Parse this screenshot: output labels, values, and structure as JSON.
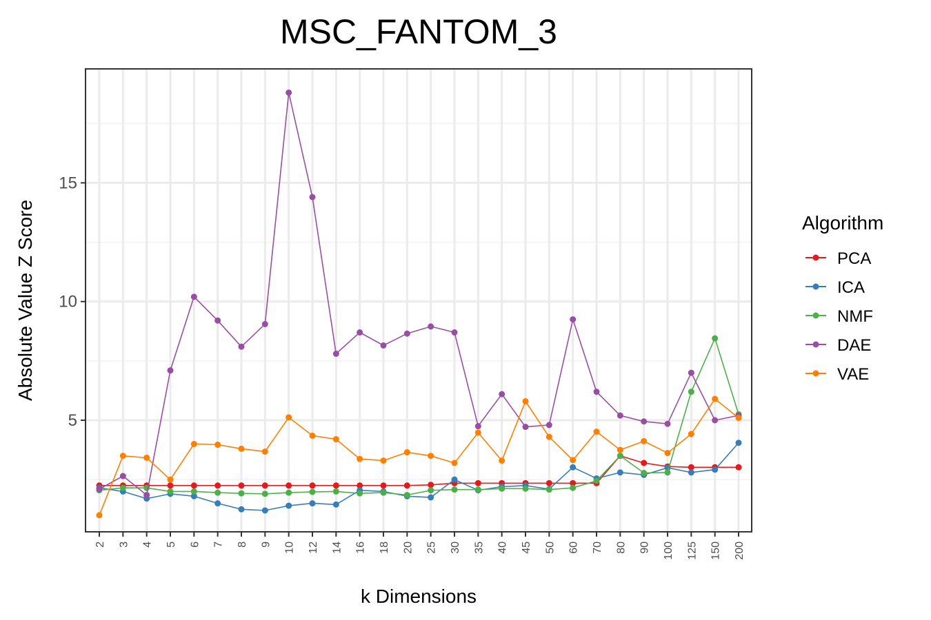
{
  "chart_data": {
    "type": "line",
    "title": "MSC_FANTOM_3",
    "xlabel": "k Dimensions",
    "ylabel": "Absolute Value Z Score",
    "categories": [
      "2",
      "3",
      "4",
      "5",
      "6",
      "7",
      "8",
      "9",
      "10",
      "12",
      "14",
      "16",
      "18",
      "20",
      "25",
      "30",
      "35",
      "40",
      "45",
      "50",
      "60",
      "70",
      "80",
      "90",
      "100",
      "125",
      "150",
      "200"
    ],
    "yticks": [
      5,
      10,
      15
    ],
    "ylim": [
      0.3,
      19.8
    ],
    "grid": true,
    "legend": {
      "title": "Algorithm",
      "position": "right"
    },
    "series": [
      {
        "name": "PCA",
        "color": "#E41A1C",
        "values": [
          2.25,
          2.25,
          2.25,
          2.25,
          2.25,
          2.25,
          2.25,
          2.25,
          2.25,
          2.25,
          2.25,
          2.25,
          2.25,
          2.25,
          2.28,
          2.35,
          2.35,
          2.35,
          2.35,
          2.35,
          2.35,
          2.35,
          3.5,
          3.2,
          3.05,
          3.02,
          3.02,
          3.02
        ]
      },
      {
        "name": "ICA",
        "color": "#377EB8",
        "values": [
          2.15,
          2.0,
          1.7,
          1.9,
          1.8,
          1.5,
          1.25,
          1.2,
          1.4,
          1.5,
          1.45,
          2.05,
          2.0,
          1.8,
          1.75,
          2.5,
          2.05,
          2.2,
          2.25,
          2.1,
          3.02,
          2.55,
          2.8,
          2.7,
          3.0,
          2.8,
          2.92,
          4.05
        ]
      },
      {
        "name": "NMF",
        "color": "#4DAF4A",
        "values": [
          2.05,
          2.15,
          2.15,
          2.0,
          2.0,
          1.95,
          1.92,
          1.9,
          1.95,
          1.98,
          2.0,
          1.92,
          1.95,
          1.85,
          2.05,
          2.08,
          2.08,
          2.12,
          2.12,
          2.08,
          2.15,
          2.45,
          3.5,
          2.78,
          2.8,
          6.2,
          8.45,
          5.25
        ]
      },
      {
        "name": "DAE",
        "color": "#984EA3",
        "values": [
          2.1,
          2.65,
          1.85,
          7.1,
          10.2,
          9.2,
          8.1,
          9.05,
          18.8,
          14.4,
          7.8,
          8.7,
          8.15,
          8.65,
          8.95,
          8.7,
          4.75,
          6.1,
          4.72,
          4.8,
          9.25,
          6.2,
          5.2,
          4.95,
          4.85,
          7.0,
          5.0,
          5.2
        ]
      },
      {
        "name": "VAE",
        "color": "#FF7F00",
        "values": [
          1.0,
          3.5,
          3.42,
          2.5,
          4.0,
          3.97,
          3.8,
          3.68,
          5.12,
          4.35,
          4.2,
          3.37,
          3.3,
          3.65,
          3.5,
          3.2,
          4.48,
          3.3,
          5.8,
          4.3,
          3.32,
          4.52,
          3.75,
          4.12,
          3.62,
          4.42,
          5.9,
          5.1
        ]
      }
    ]
  }
}
